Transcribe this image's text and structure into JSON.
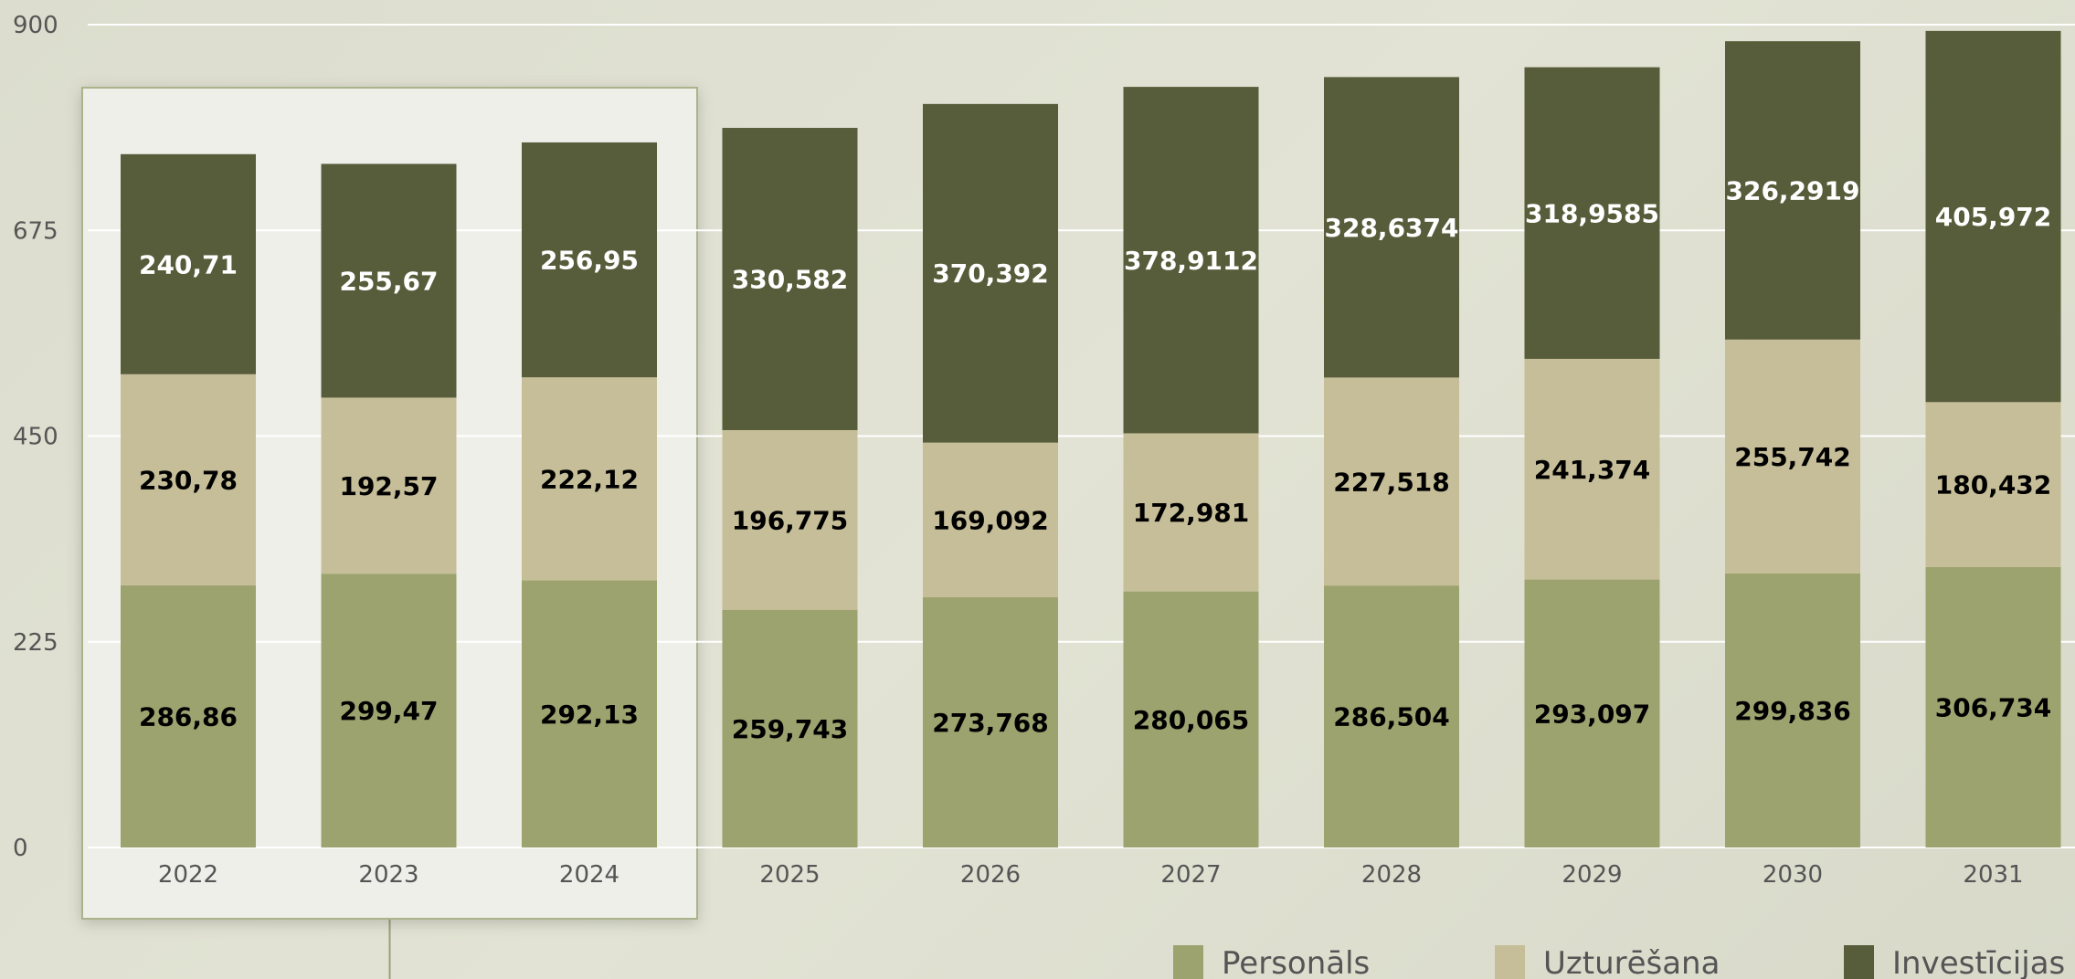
{
  "chart_data": {
    "type": "bar",
    "stacked": true,
    "categories": [
      "2022",
      "2023",
      "2024",
      "2025",
      "2026",
      "2027",
      "2028",
      "2029",
      "2030",
      "2031"
    ],
    "series": [
      {
        "name": "Personāls",
        "color": "#9ca36e",
        "label_color": "#000000",
        "values": [
          286.86,
          299.47,
          292.13,
          259.743,
          273.768,
          280.065,
          286.504,
          293.097,
          299.836,
          306.734
        ],
        "labels": [
          "286,86",
          "299,47",
          "292,13",
          "259,743",
          "273,768",
          "280,065",
          "286,504",
          "293,097",
          "299,836",
          "306,734"
        ]
      },
      {
        "name": "Uzturēšana",
        "color": "#c6be98",
        "label_color": "#000000",
        "values": [
          230.78,
          192.57,
          222.12,
          196.775,
          169.092,
          172.981,
          227.518,
          241.374,
          255.742,
          180.432
        ],
        "labels": [
          "230,78",
          "192,57",
          "222,12",
          "196,775",
          "169,092",
          "172,981",
          "227,518",
          "241,374",
          "255,742",
          "180,432"
        ]
      },
      {
        "name": "Investīcijas",
        "color": "#575c3a",
        "label_color": "#ffffff",
        "values": [
          240.71,
          255.67,
          256.95,
          330.582,
          370.392,
          378.9112,
          328.6374,
          318.9585,
          326.2919,
          405.972
        ],
        "labels": [
          "240,71",
          "255,67",
          "256,95",
          "330,582",
          "370,392",
          "378,9112",
          "328,6374",
          "318,9585",
          "326,2919",
          "405,972"
        ]
      }
    ],
    "yticks": [
      "0",
      "225",
      "450",
      "675",
      "900"
    ],
    "ylim": [
      0,
      900
    ],
    "grid": true,
    "legend": "bottom-right",
    "highlight": {
      "categories": [
        "2022",
        "2023",
        "2024"
      ]
    }
  }
}
